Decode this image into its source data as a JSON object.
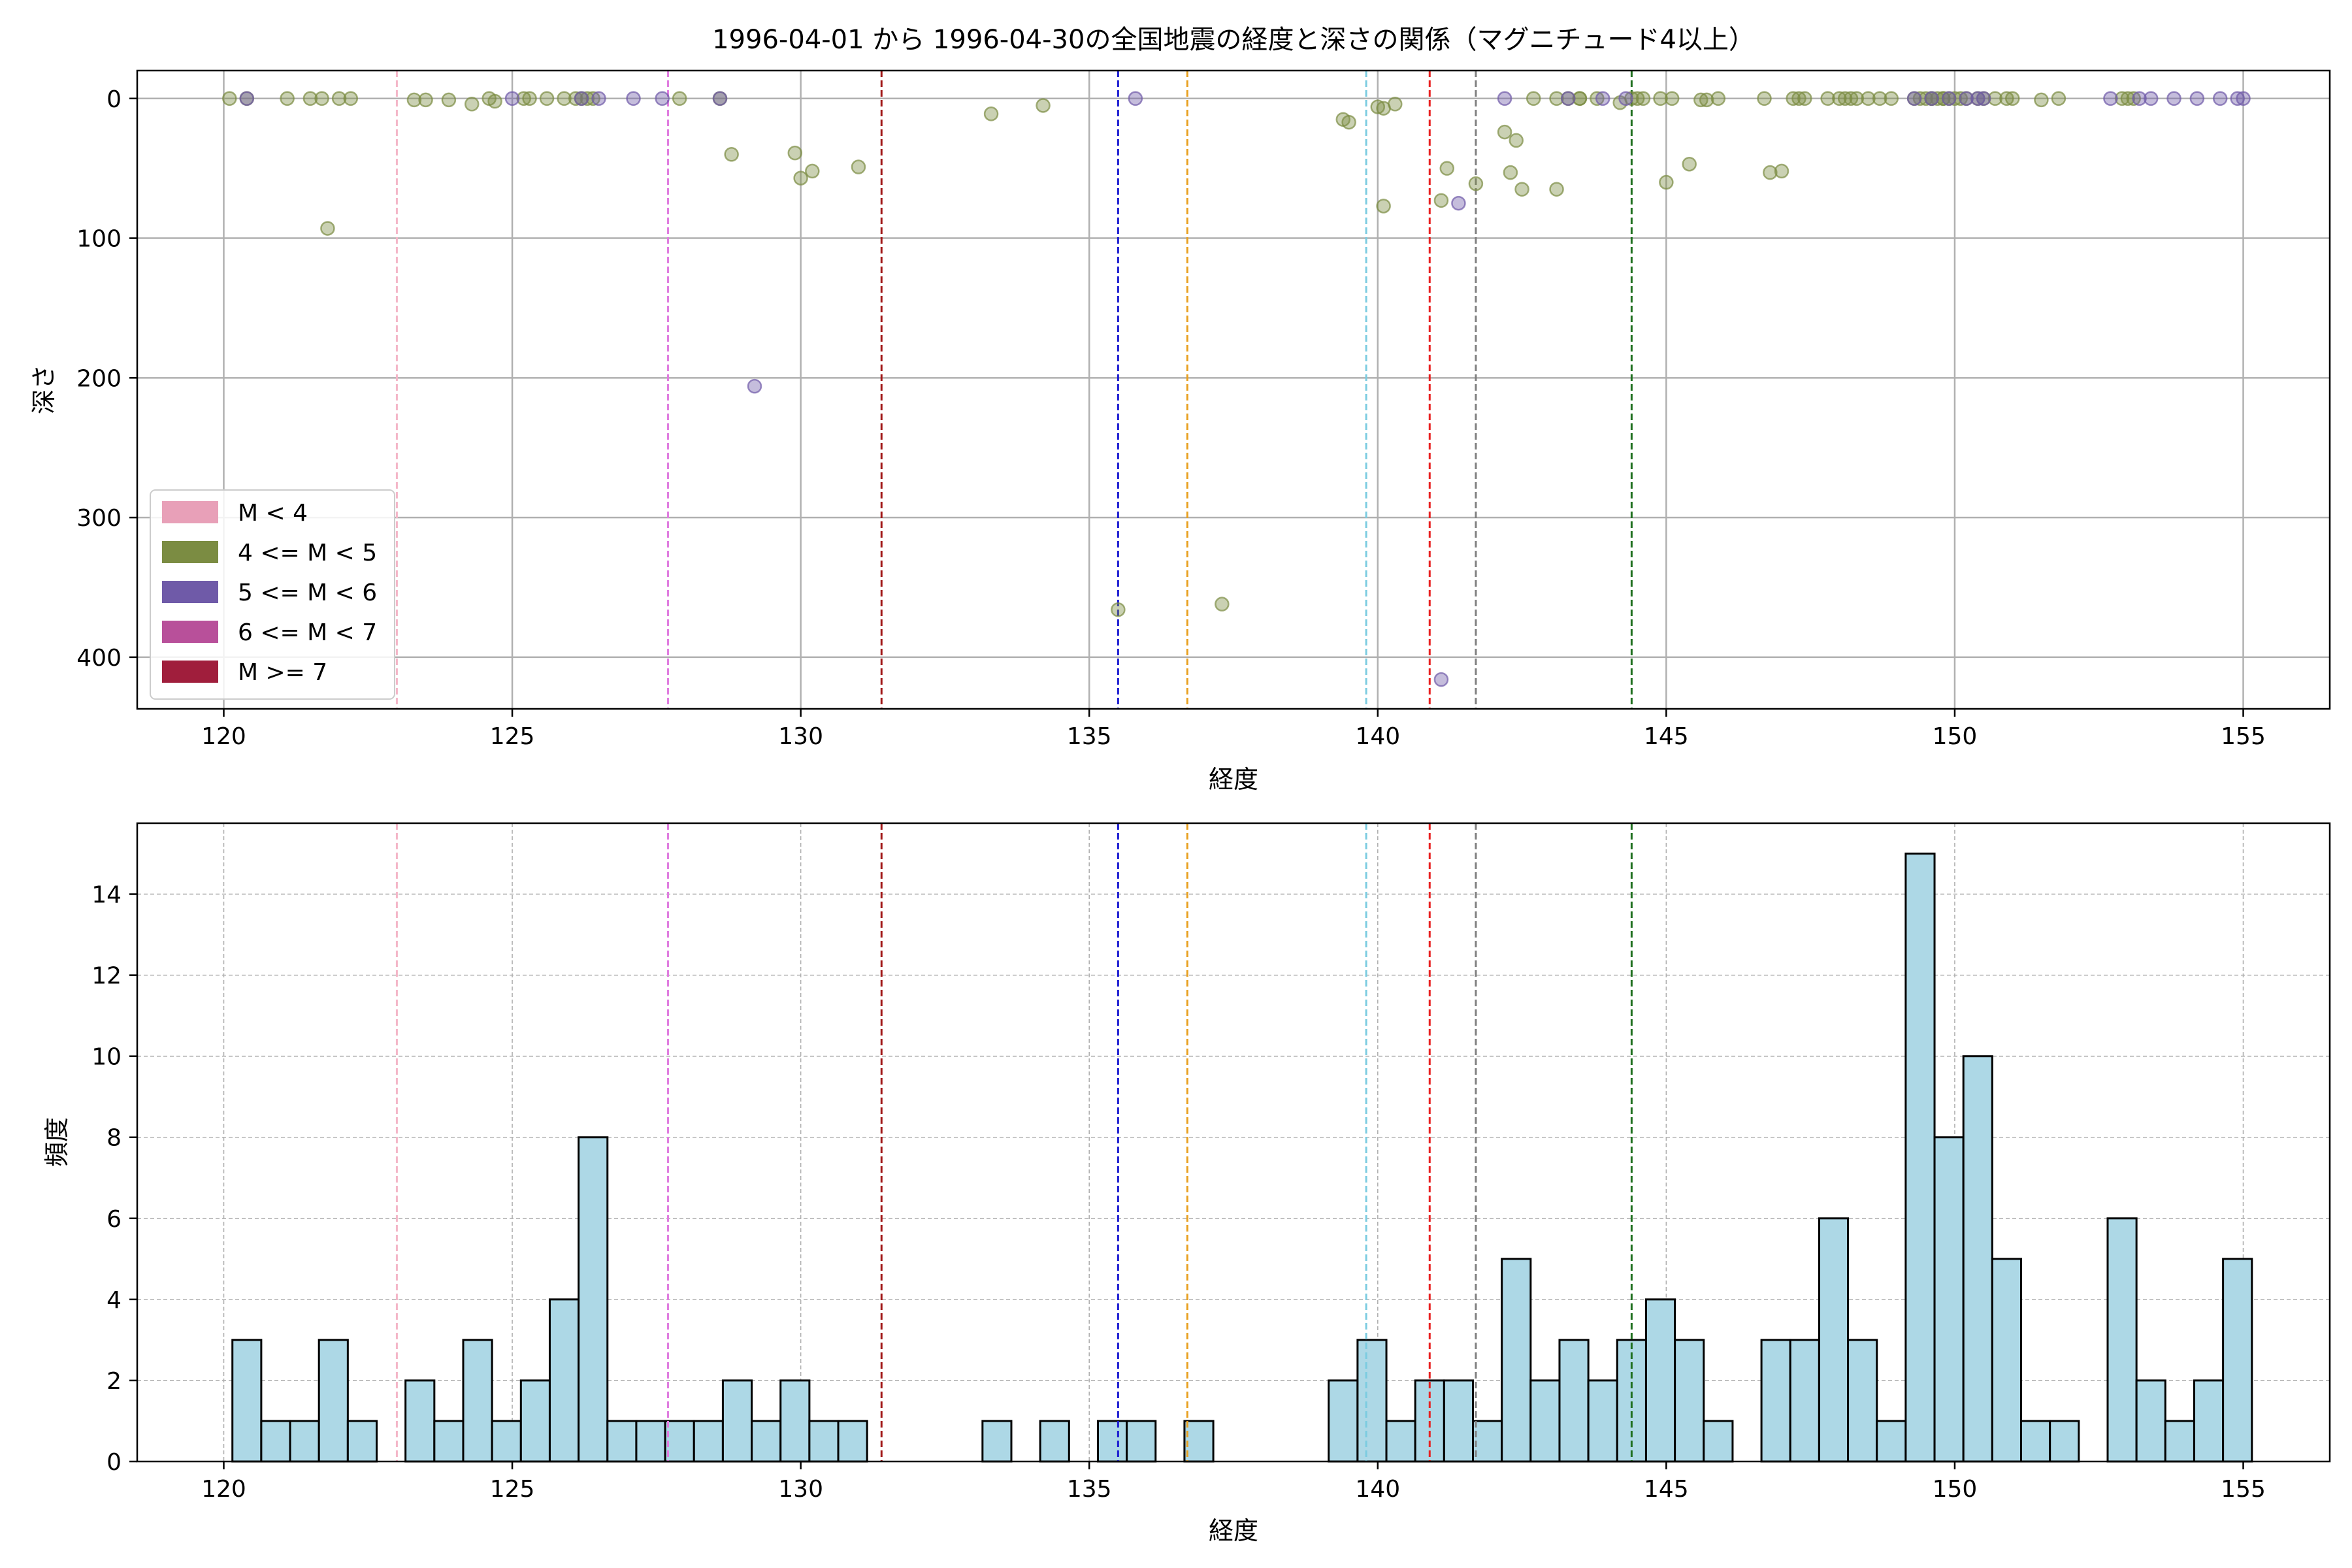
{
  "figure_title": "1996-04-01 から 1996-04-30の全国地震の経度と深さの関係（マグニチュード4以上）",
  "colors": {
    "m_lt4": "#e8a0b8",
    "m_4_5": "#7b8c42",
    "m_5_6": "#6f5aa8",
    "m_6_7": "#b8509a",
    "m_ge7": "#a01e3c",
    "bar_fill": "#add8e6",
    "grid": "#b0b0b0"
  },
  "chart_data": [
    {
      "type": "scatter",
      "title": "1996-04-01 から 1996-04-30の全国地震の経度と深さの関係（マグニチュード4以上）",
      "xlabel": "経度",
      "ylabel": "深さ",
      "xlim": [
        118.5,
        156.5
      ],
      "ylim": [
        437,
        -20
      ],
      "y_inverted": true,
      "x_ticks": [
        120,
        125,
        130,
        135,
        140,
        145,
        150,
        155
      ],
      "y_ticks": [
        0,
        100,
        200,
        300,
        400
      ],
      "grid": true,
      "legend_position": "lower-left",
      "legend": [
        {
          "label": "M < 4",
          "color_key": "m_lt4"
        },
        {
          "label": "4 <= M < 5",
          "color_key": "m_4_5"
        },
        {
          "label": "5 <= M < 6",
          "color_key": "m_5_6"
        },
        {
          "label": "6 <= M < 7",
          "color_key": "m_6_7"
        },
        {
          "label": "M >= 7",
          "color_key": "m_ge7"
        }
      ],
      "vlines": [
        {
          "x": 123.0,
          "color": "#f4b6c8"
        },
        {
          "x": 127.7,
          "color": "#e07ee0"
        },
        {
          "x": 131.4,
          "color": "#a01818"
        },
        {
          "x": 135.5,
          "color": "#1a1ad0"
        },
        {
          "x": 136.7,
          "color": "#e8a020"
        },
        {
          "x": 139.8,
          "color": "#7ccce0"
        },
        {
          "x": 140.9,
          "color": "#e82020"
        },
        {
          "x": 141.7,
          "color": "#808080"
        },
        {
          "x": 144.4,
          "color": "#207020"
        }
      ],
      "series": [
        {
          "name": "4 <= M < 5",
          "color_key": "m_4_5",
          "points": [
            [
              120.1,
              0
            ],
            [
              120.4,
              0
            ],
            [
              121.1,
              0
            ],
            [
              121.5,
              0
            ],
            [
              121.7,
              0
            ],
            [
              122.0,
              0
            ],
            [
              122.2,
              0
            ],
            [
              121.8,
              93
            ],
            [
              123.3,
              1
            ],
            [
              123.5,
              1
            ],
            [
              123.9,
              1
            ],
            [
              124.3,
              4
            ],
            [
              124.6,
              0
            ],
            [
              124.7,
              2
            ],
            [
              125.2,
              0
            ],
            [
              125.3,
              0
            ],
            [
              125.6,
              0
            ],
            [
              125.9,
              0
            ],
            [
              126.1,
              0
            ],
            [
              126.2,
              0
            ],
            [
              126.3,
              0
            ],
            [
              126.4,
              0
            ],
            [
              127.9,
              0
            ],
            [
              128.6,
              0
            ],
            [
              128.8,
              40
            ],
            [
              129.9,
              39
            ],
            [
              130.0,
              57
            ],
            [
              130.2,
              52
            ],
            [
              131.0,
              49
            ],
            [
              133.3,
              11
            ],
            [
              134.2,
              5
            ],
            [
              135.5,
              366
            ],
            [
              137.3,
              362
            ],
            [
              139.4,
              15
            ],
            [
              139.5,
              17
            ],
            [
              140.0,
              6
            ],
            [
              140.1,
              7
            ],
            [
              140.3,
              4
            ],
            [
              140.1,
              77
            ],
            [
              141.2,
              50
            ],
            [
              141.1,
              73
            ],
            [
              141.7,
              61
            ],
            [
              142.2,
              24
            ],
            [
              142.3,
              53
            ],
            [
              142.4,
              30
            ],
            [
              142.5,
              65
            ],
            [
              143.1,
              65
            ],
            [
              142.7,
              0
            ],
            [
              143.1,
              0
            ],
            [
              143.3,
              0
            ],
            [
              143.5,
              0
            ],
            [
              143.5,
              0
            ],
            [
              143.8,
              0
            ],
            [
              144.2,
              3
            ],
            [
              144.4,
              0
            ],
            [
              144.5,
              0
            ],
            [
              144.6,
              0
            ],
            [
              144.9,
              0
            ],
            [
              145.1,
              0
            ],
            [
              145.0,
              60
            ],
            [
              145.4,
              47
            ],
            [
              145.6,
              1
            ],
            [
              145.7,
              1
            ],
            [
              145.9,
              0
            ],
            [
              146.7,
              0
            ],
            [
              146.8,
              53
            ],
            [
              147.0,
              52
            ],
            [
              147.2,
              0
            ],
            [
              147.3,
              0
            ],
            [
              147.4,
              0
            ],
            [
              147.8,
              0
            ],
            [
              148.0,
              0
            ],
            [
              148.1,
              0
            ],
            [
              148.2,
              0
            ],
            [
              148.3,
              0
            ],
            [
              148.5,
              0
            ],
            [
              148.7,
              0
            ],
            [
              148.9,
              0
            ],
            [
              149.3,
              0
            ],
            [
              149.4,
              0
            ],
            [
              149.5,
              0
            ],
            [
              149.6,
              0
            ],
            [
              149.6,
              0
            ],
            [
              149.7,
              0
            ],
            [
              149.8,
              0
            ],
            [
              149.8,
              0
            ],
            [
              149.9,
              0
            ],
            [
              150.0,
              0
            ],
            [
              150.1,
              0
            ],
            [
              150.2,
              0
            ],
            [
              150.4,
              0
            ],
            [
              150.5,
              0
            ],
            [
              150.7,
              0
            ],
            [
              150.9,
              0
            ],
            [
              151.0,
              0
            ],
            [
              151.5,
              1
            ],
            [
              151.8,
              0
            ],
            [
              152.9,
              0
            ],
            [
              153.0,
              0
            ],
            [
              153.1,
              0
            ]
          ]
        },
        {
          "name": "5 <= M < 6",
          "color_key": "m_5_6",
          "points": [
            [
              120.4,
              0
            ],
            [
              125.0,
              0
            ],
            [
              126.2,
              0
            ],
            [
              126.5,
              0
            ],
            [
              127.1,
              0
            ],
            [
              127.6,
              0
            ],
            [
              128.6,
              0
            ],
            [
              129.2,
              206
            ],
            [
              135.8,
              0
            ],
            [
              141.1,
              416
            ],
            [
              141.4,
              75
            ],
            [
              142.2,
              0
            ],
            [
              143.3,
              0
            ],
            [
              143.9,
              0
            ],
            [
              144.3,
              0
            ],
            [
              149.3,
              0
            ],
            [
              149.6,
              0
            ],
            [
              149.9,
              0
            ],
            [
              150.2,
              0
            ],
            [
              150.4,
              0
            ],
            [
              150.5,
              0
            ],
            [
              152.7,
              0
            ],
            [
              153.2,
              0
            ],
            [
              153.4,
              0
            ],
            [
              153.8,
              0
            ],
            [
              154.2,
              0
            ],
            [
              154.6,
              0
            ],
            [
              154.9,
              0
            ],
            [
              155.0,
              0
            ]
          ]
        }
      ]
    },
    {
      "type": "bar",
      "xlabel": "経度",
      "ylabel": "頻度",
      "xlim": [
        118.5,
        156.5
      ],
      "ylim": [
        0,
        15.75
      ],
      "x_ticks": [
        120,
        125,
        130,
        135,
        140,
        145,
        150,
        155
      ],
      "y_ticks": [
        0,
        2,
        4,
        6,
        8,
        10,
        12,
        14
      ],
      "grid": true,
      "bin_start": 120.15,
      "bin_width": 0.5,
      "values": [
        3,
        1,
        1,
        3,
        1,
        0,
        2,
        1,
        3,
        1,
        2,
        4,
        8,
        1,
        1,
        1,
        1,
        2,
        1,
        2,
        1,
        1,
        0,
        0,
        0,
        0,
        1,
        0,
        1,
        0,
        1,
        1,
        0,
        1,
        0,
        0,
        0,
        0,
        2,
        3,
        1,
        2,
        2,
        1,
        5,
        2,
        3,
        2,
        3,
        4,
        3,
        1,
        0,
        3,
        3,
        6,
        3,
        1,
        15,
        8,
        10,
        5,
        1,
        1,
        0,
        6,
        2,
        1,
        2,
        5
      ],
      "vlines": [
        {
          "x": 123.0,
          "color": "#f4b6c8"
        },
        {
          "x": 127.7,
          "color": "#e07ee0"
        },
        {
          "x": 131.4,
          "color": "#a01818"
        },
        {
          "x": 135.5,
          "color": "#1a1ad0"
        },
        {
          "x": 136.7,
          "color": "#e8a020"
        },
        {
          "x": 139.8,
          "color": "#7ccce0"
        },
        {
          "x": 140.9,
          "color": "#e82020"
        },
        {
          "x": 141.7,
          "color": "#808080"
        },
        {
          "x": 144.4,
          "color": "#207020"
        }
      ]
    }
  ]
}
